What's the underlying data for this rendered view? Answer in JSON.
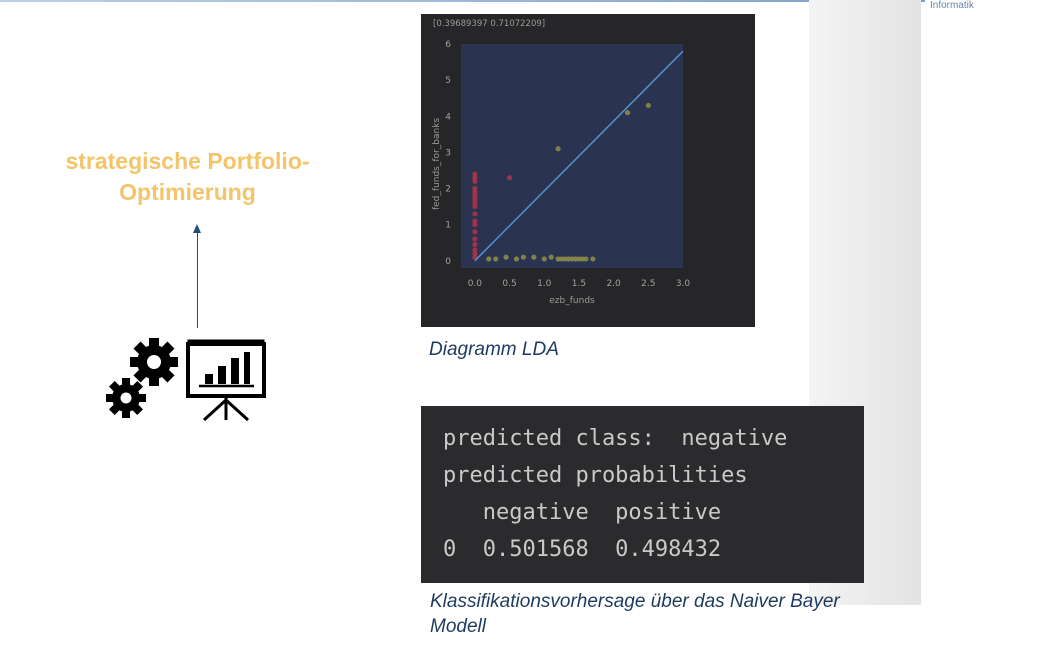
{
  "header": {
    "brand": "Informatik"
  },
  "left": {
    "title": "strategische Portfolio-Optimierung",
    "icon": "gears-presentation-icon"
  },
  "lda": {
    "caption": "Diagramm LDA",
    "header_text": "[0.39689397 0.71072209]",
    "colors": {
      "bg": "#262628",
      "plot_bg": "#2a3350",
      "line": "#4f8fc6",
      "red": "#b3334a",
      "yellow": "#8f8e4c"
    }
  },
  "classification": {
    "lines": [
      "predicted class:  negative",
      "predicted probabilities",
      "   negative  positive",
      "0  0.501568  0.498432"
    ],
    "caption": "Klassifikationsvorhersage über das Naiver Bayer Modell"
  },
  "chart_data": {
    "type": "scatter",
    "title": "",
    "xlabel": "ezb_funds",
    "ylabel": "fed_funds_for_banks",
    "xlim": [
      -0.2,
      3.0
    ],
    "ylim": [
      -0.2,
      6
    ],
    "xticks": [
      "0.0",
      "0.5",
      "1.0",
      "1.5",
      "2.0",
      "2.5",
      "3.0"
    ],
    "yticks": [
      "0",
      "1",
      "2",
      "3",
      "4",
      "5",
      "6"
    ],
    "grid": false,
    "line": {
      "x": [
        0.0,
        3.0
      ],
      "y": [
        0.0,
        5.8
      ]
    },
    "series": [
      {
        "class": "red",
        "x": [
          0,
          0,
          0,
          0,
          0,
          0,
          0,
          0,
          0,
          0,
          0,
          0,
          0,
          0,
          0,
          0,
          0,
          0,
          0.5
        ],
        "y": [
          2.4,
          2.3,
          2.2,
          2.0,
          1.9,
          1.8,
          1.7,
          1.6,
          1.5,
          1.3,
          1.1,
          1.0,
          0.8,
          0.6,
          0.45,
          0.3,
          0.2,
          0.1,
          2.3
        ]
      },
      {
        "class": "yellow",
        "x": [
          0.2,
          0.3,
          0.45,
          0.6,
          0.7,
          0.85,
          1.0,
          1.1,
          1.2,
          1.25,
          1.3,
          1.35,
          1.4,
          1.45,
          1.5,
          1.55,
          1.6,
          1.7,
          1.2,
          2.2,
          2.5
        ],
        "y": [
          0.05,
          0.05,
          0.1,
          0.05,
          0.1,
          0.1,
          0.05,
          0.1,
          0.05,
          0.05,
          0.05,
          0.05,
          0.05,
          0.05,
          0.05,
          0.05,
          0.05,
          0.05,
          3.1,
          4.1,
          4.3
        ]
      }
    ]
  }
}
